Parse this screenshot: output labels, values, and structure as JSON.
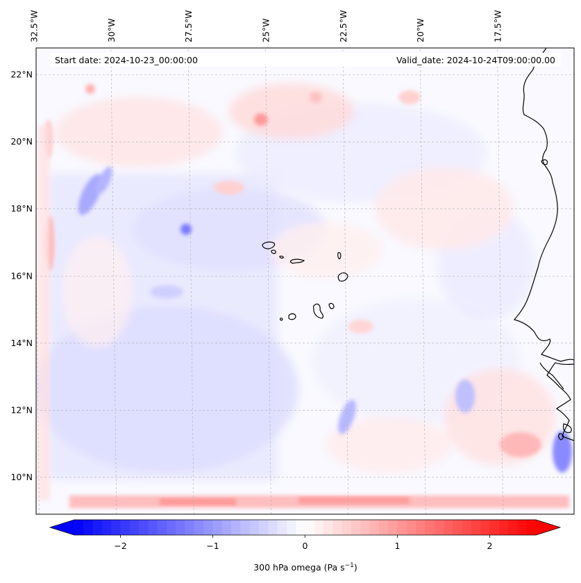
{
  "map": {
    "start_date_label": "Start date: 2024-10-23_00:00:00",
    "valid_date_label": "Valid_date: 2024-10-24T09:00:00.00",
    "lon_labels": [
      "32.5°W",
      "30°W",
      "27.5°W",
      "25°W",
      "22.5°W",
      "20°W",
      "17.5°W"
    ],
    "lat_labels": [
      "22°N",
      "20°N",
      "18°N",
      "16°N",
      "14°N",
      "12°N",
      "10°N"
    ],
    "lon_values": [
      -32.5,
      -30,
      -27.5,
      -25,
      -22.5,
      -20,
      -17.5
    ],
    "lat_values": [
      22,
      20,
      18,
      16,
      14,
      12,
      10
    ],
    "lon_range": [
      -32.6,
      -15.2
    ],
    "lat_range": [
      8.9,
      22.8
    ],
    "gridlines": true,
    "colorbar": {
      "label_prefix": "300 hPa omega (Pa s",
      "label_exp": "−1",
      "label_suffix": ")",
      "ticks": [
        "−2",
        "−1",
        "0",
        "1",
        "2"
      ],
      "tick_values": [
        -2,
        -1,
        0,
        1,
        2
      ],
      "range": [
        -2.5,
        2.5
      ],
      "colormap": "bwr",
      "extend": "both",
      "color_min": "#0000ff",
      "color_mid": "#ffffff",
      "color_max": "#ff0000"
    },
    "coastline_color": "#000000"
  }
}
